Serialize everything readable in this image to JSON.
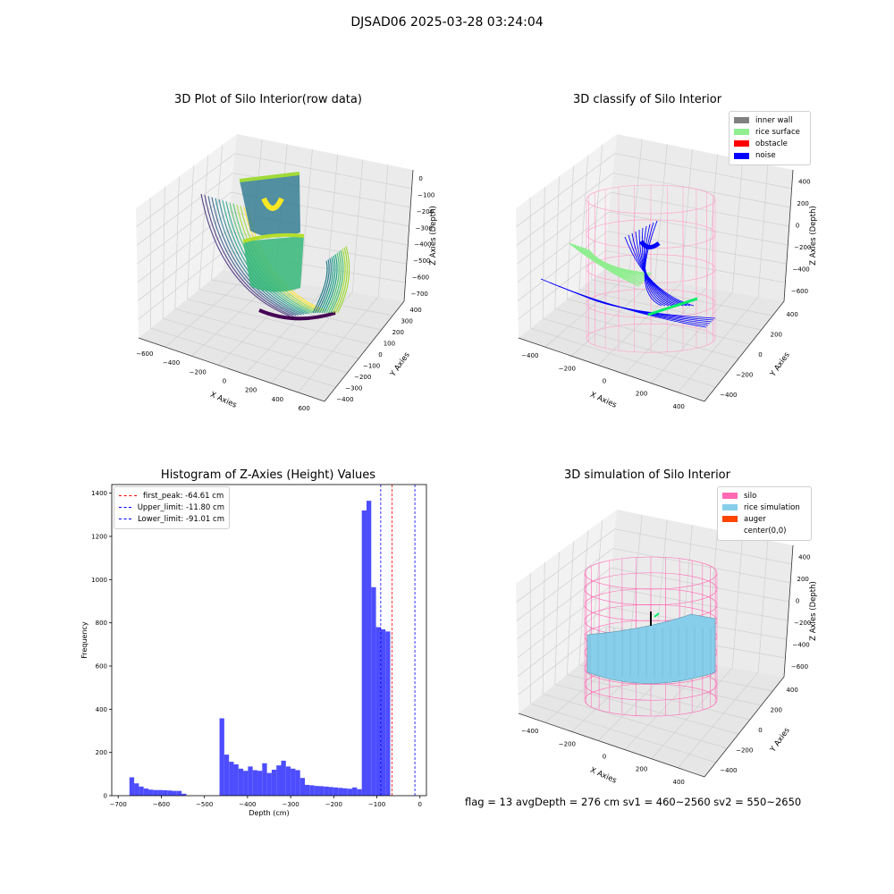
{
  "suptitle": "DJSAD06 2025-03-28 03:24:04",
  "footer": "flag = 13   avgDepth = 276 cm  sv1 = 460~2560  sv2 = 550~2650",
  "chart_data": [
    {
      "type": "scatter",
      "projection": "3d",
      "title": "3D Plot of Silo Interior(row data)",
      "xlabel": "X Axies",
      "ylabel": "Y Axies",
      "zlabel": "Z Axies (Depth)",
      "xticks": [
        "−600",
        "−400",
        "−200",
        "0",
        "200",
        "400",
        "600"
      ],
      "yticks": [
        "400",
        "300",
        "200",
        "100",
        "0",
        "−100",
        "−200",
        "−300",
        "−400"
      ],
      "zticks": [
        "0",
        "−100",
        "−200",
        "−300",
        "−400",
        "−500",
        "−600",
        "−700"
      ],
      "colormap": "viridis"
    },
    {
      "type": "scatter",
      "projection": "3d",
      "title": "3D classify of Silo Interior",
      "xlabel": "X Axies",
      "ylabel": "Y Axies",
      "zlabel": "Z Axies (Depth)",
      "xticks": [
        "−400",
        "−200",
        "0",
        "200",
        "400"
      ],
      "yticks": [
        "400",
        "200",
        "0",
        "−200",
        "−400"
      ],
      "zticks": [
        "400",
        "200",
        "0",
        "−200",
        "−400",
        "−600"
      ],
      "legend": [
        {
          "label": "inner wall",
          "color": "#808080"
        },
        {
          "label": "rice surface",
          "color": "#90ee90"
        },
        {
          "label": "obstacle",
          "color": "#ff0000"
        },
        {
          "label": "noise",
          "color": "#0000ff"
        }
      ],
      "legend_position": "upper-right"
    },
    {
      "type": "bar",
      "title": "Histogram of Z-Axies (Height) Values",
      "xlabel": "Depth (cm)",
      "ylabel": "Frequency",
      "xlim": [
        -715,
        15
      ],
      "ylim": [
        0,
        1440
      ],
      "xticks": [
        -700,
        -600,
        -500,
        -400,
        -300,
        -200,
        -100,
        0
      ],
      "yticks": [
        0,
        200,
        400,
        600,
        800,
        1000,
        1200,
        1400
      ],
      "bar_color": "#4d4dff",
      "bin_width": 11,
      "bin_starts": [
        -674,
        -663,
        -652,
        -641,
        -630,
        -619,
        -608,
        -597,
        -586,
        -575,
        -564,
        -553,
        -542,
        -531,
        -520,
        -509,
        -498,
        -487,
        -476,
        -465,
        -454,
        -443,
        -432,
        -421,
        -410,
        -399,
        -388,
        -377,
        -366,
        -355,
        -344,
        -333,
        -322,
        -311,
        -300,
        -289,
        -278,
        -267,
        -256,
        -245,
        -234,
        -223,
        -212,
        -201,
        -190,
        -179,
        -168,
        -157,
        -146,
        -135,
        -124,
        -113,
        -102,
        -91,
        -80,
        -69,
        -58,
        -47,
        -36,
        -25,
        -14
      ],
      "values": [
        85,
        57,
        42,
        33,
        28,
        26,
        26,
        25,
        24,
        22,
        22,
        9,
        0,
        0,
        0,
        0,
        0,
        0,
        0,
        358,
        190,
        157,
        145,
        125,
        115,
        135,
        118,
        115,
        150,
        105,
        120,
        140,
        162,
        135,
        125,
        118,
        82,
        50,
        48,
        45,
        44,
        42,
        40,
        38,
        36,
        34,
        32,
        38,
        30,
        1320,
        1365,
        965,
        780,
        770,
        760,
        0,
        0,
        0,
        0,
        0,
        0
      ],
      "lines": [
        {
          "label": "first_peak: -64.61 cm",
          "x": -64.61,
          "color": "#ff0000"
        },
        {
          "label": "Upper_limit: -11.80 cm",
          "x": -11.8,
          "color": "#0000ff"
        },
        {
          "label": "Lower_limit: -91.01 cm",
          "x": -91.01,
          "color": "#0000ff"
        }
      ],
      "legend_position": "upper-left"
    },
    {
      "type": "scatter",
      "projection": "3d",
      "title": "3D simulation of Silo Interior",
      "xlabel": "X Axies",
      "ylabel": "Y Axies",
      "zlabel": "Z Axies (Depth)",
      "xticks": [
        "−400",
        "−200",
        "0",
        "200",
        "400"
      ],
      "yticks": [
        "400",
        "200",
        "0",
        "−200",
        "−400"
      ],
      "zticks": [
        "400",
        "200",
        "0",
        "−200",
        "−400",
        "−600"
      ],
      "legend": [
        {
          "label": "silo",
          "color": "#ff69b4"
        },
        {
          "label": "rice simulation",
          "color": "#87ceeb"
        },
        {
          "label": "auger",
          "color": "#ff4500"
        },
        {
          "label": "center(0,0)",
          "color": "#ffffff"
        }
      ],
      "legend_position": "upper-right"
    }
  ]
}
